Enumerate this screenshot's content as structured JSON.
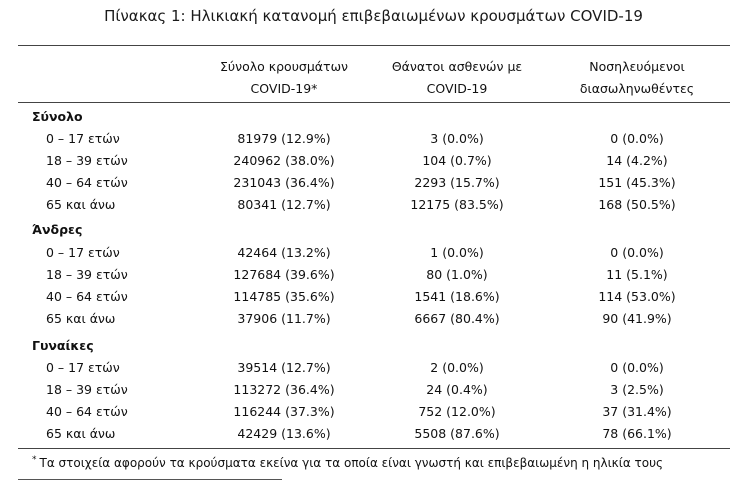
{
  "title": "Πίνακας 1: Ηλικιακή κατανομή επιβεβαιωμένων κρουσμάτων COVID-19",
  "headers": {
    "col1_line1": "Σύνολο κρουσμάτων",
    "col1_line2": "COVID-19*",
    "col2_line1": "Θάνατοι ασθενών με",
    "col2_line2": "COVID-19",
    "col3_line1": "Νοσηλευόμενοι",
    "col3_line2": "διασωληνωθέντες"
  },
  "sections": [
    {
      "name": "Σύνολο",
      "rows": [
        {
          "label": "0 – 17 ετών",
          "cases": "81979 (12.9%)",
          "deaths": "3 (0.0%)",
          "intubated": "0 (0.0%)"
        },
        {
          "label": "18 – 39 ετών",
          "cases": "240962 (38.0%)",
          "deaths": "104 (0.7%)",
          "intubated": "14 (4.2%)"
        },
        {
          "label": "40 – 64 ετών",
          "cases": "231043 (36.4%)",
          "deaths": "2293 (15.7%)",
          "intubated": "151 (45.3%)"
        },
        {
          "label": "65 και άνω",
          "cases": "80341 (12.7%)",
          "deaths": "12175 (83.5%)",
          "intubated": "168 (50.5%)"
        }
      ]
    },
    {
      "name": "Άνδρες",
      "rows": [
        {
          "label": "0 – 17 ετών",
          "cases": "42464 (13.2%)",
          "deaths": "1 (0.0%)",
          "intubated": "0 (0.0%)"
        },
        {
          "label": "18 – 39 ετών",
          "cases": "127684 (39.6%)",
          "deaths": "80 (1.0%)",
          "intubated": "11 (5.1%)"
        },
        {
          "label": "40 – 64 ετών",
          "cases": "114785 (35.6%)",
          "deaths": "1541 (18.6%)",
          "intubated": "114 (53.0%)"
        },
        {
          "label": "65 και άνω",
          "cases": "37906 (11.7%)",
          "deaths": "6667 (80.4%)",
          "intubated": "90 (41.9%)"
        }
      ]
    },
    {
      "name": "Γυναίκες",
      "rows": [
        {
          "label": "0 – 17 ετών",
          "cases": "39514 (12.7%)",
          "deaths": "2 (0.0%)",
          "intubated": "0 (0.0%)"
        },
        {
          "label": "18 – 39 ετών",
          "cases": "113272 (36.4%)",
          "deaths": "24 (0.4%)",
          "intubated": "3 (2.5%)"
        },
        {
          "label": "40 – 64 ετών",
          "cases": "116244 (37.3%)",
          "deaths": "752 (12.0%)",
          "intubated": "37 (31.4%)"
        },
        {
          "label": "65 και άνω",
          "cases": "42429 (13.6%)",
          "deaths": "5508 (87.6%)",
          "intubated": "78 (66.1%)"
        }
      ]
    }
  ],
  "footnote": {
    "marker": "*",
    "text": "Τα στοιχεία αφορούν τα κρούσματα εκείνα για τα οποία είναι γνωστή και επιβεβαιωμένη η ηλικία τους"
  }
}
